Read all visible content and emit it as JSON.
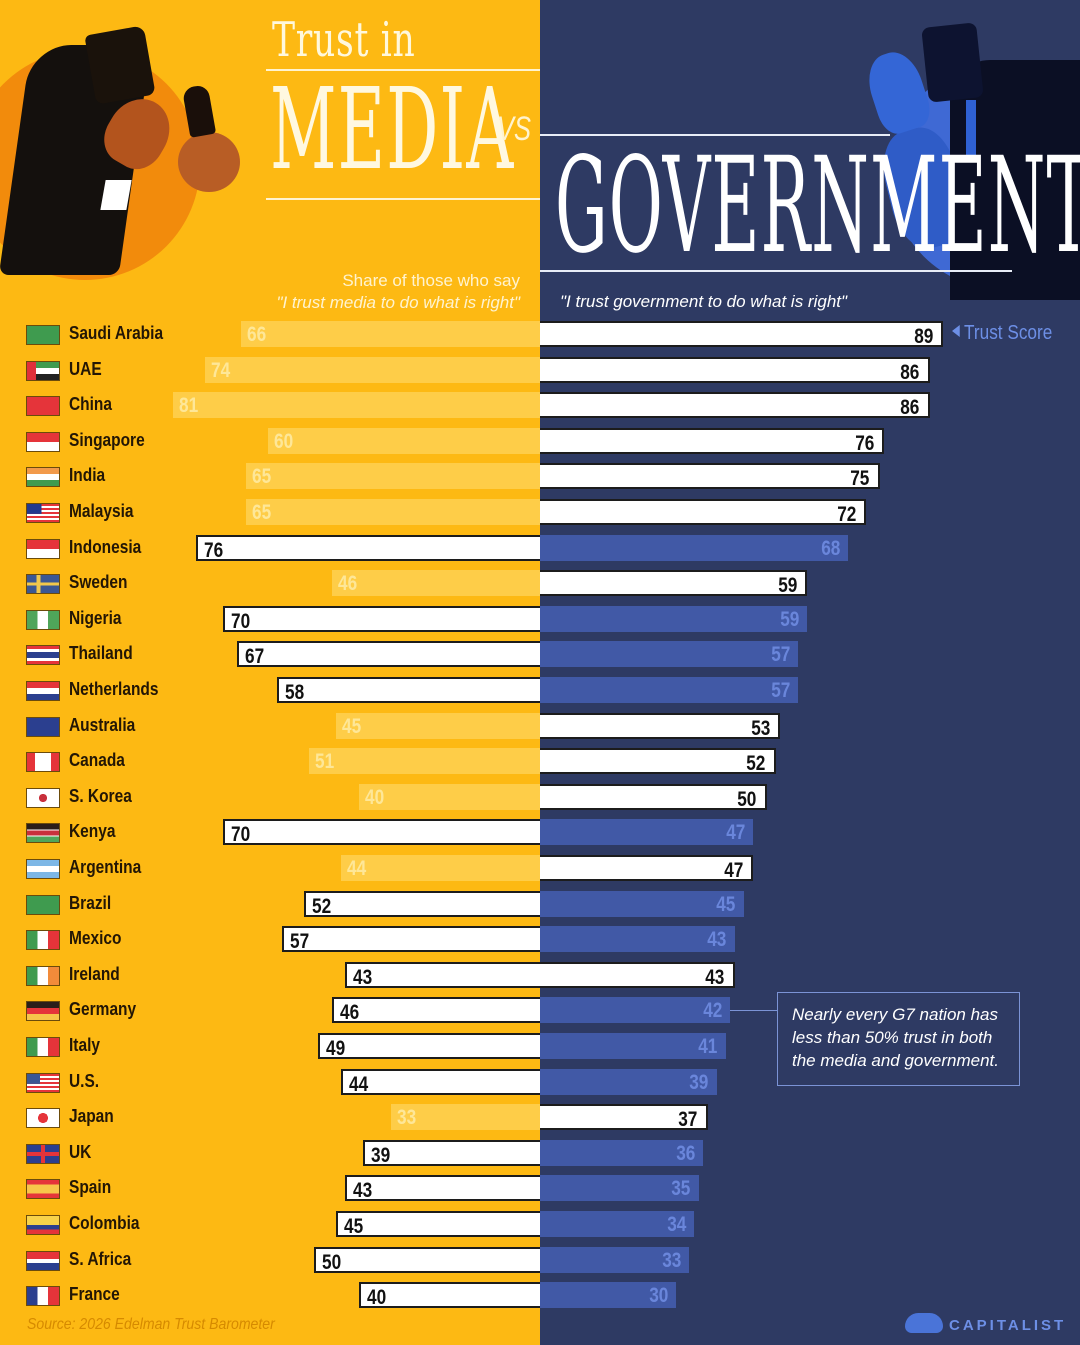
{
  "header": {
    "title_top": "Trust in",
    "title_left": "MEDIA",
    "title_vs": "VS",
    "title_right": "GOVERNMENT",
    "subtitle_left_line1": "Share of those who say",
    "subtitle_left_line2": "\"I trust media to do what is right\"",
    "subtitle_right": "\"I trust government to do what is right\""
  },
  "legend": {
    "trust_score_label": "Trust Score"
  },
  "annotation": "Nearly every G7 nation has less than 50% trust in both the media and government.",
  "footer": {
    "source": "Source: 2026 Edelman Trust Barometer",
    "logo": "CAPITALIST"
  },
  "colors": {
    "media_bg": "#fdb913",
    "government_bg": "#2e3a63",
    "media_faded_bar": "#fecd48",
    "government_faded_bar": "#4159a6",
    "highlight_bar": "#ffffff",
    "trust_score_accent": "#6d8fe6"
  },
  "rows": [
    {
      "country": "Saudi Arabia",
      "media": "66",
      "gov": "89",
      "winner": "gov"
    },
    {
      "country": "UAE",
      "media": "74",
      "gov": "86",
      "winner": "gov"
    },
    {
      "country": "China",
      "media": "81",
      "gov": "86",
      "winner": "gov"
    },
    {
      "country": "Singapore",
      "media": "60",
      "gov": "76",
      "winner": "gov"
    },
    {
      "country": "India",
      "media": "65",
      "gov": "75",
      "winner": "gov"
    },
    {
      "country": "Malaysia",
      "media": "65",
      "gov": "72",
      "winner": "gov"
    },
    {
      "country": "Indonesia",
      "media": "76",
      "gov": "68",
      "winner": "media"
    },
    {
      "country": "Sweden",
      "media": "46",
      "gov": "59",
      "winner": "gov"
    },
    {
      "country": "Nigeria",
      "media": "70",
      "gov": "59",
      "winner": "media"
    },
    {
      "country": "Thailand",
      "media": "67",
      "gov": "57",
      "winner": "media"
    },
    {
      "country": "Netherlands",
      "media": "58",
      "gov": "57",
      "winner": "media"
    },
    {
      "country": "Australia",
      "media": "45",
      "gov": "53",
      "winner": "gov"
    },
    {
      "country": "Canada",
      "media": "51",
      "gov": "52",
      "winner": "gov"
    },
    {
      "country": "S. Korea",
      "media": "40",
      "gov": "50",
      "winner": "gov"
    },
    {
      "country": "Kenya",
      "media": "70",
      "gov": "47",
      "winner": "media"
    },
    {
      "country": "Argentina",
      "media": "44",
      "gov": "47",
      "winner": "gov"
    },
    {
      "country": "Brazil",
      "media": "52",
      "gov": "45",
      "winner": "media"
    },
    {
      "country": "Mexico",
      "media": "57",
      "gov": "43",
      "winner": "media"
    },
    {
      "country": "Ireland",
      "media": "43",
      "gov": "43",
      "winner": "both"
    },
    {
      "country": "Germany",
      "media": "46",
      "gov": "42",
      "winner": "media"
    },
    {
      "country": "Italy",
      "media": "49",
      "gov": "41",
      "winner": "media"
    },
    {
      "country": "U.S.",
      "media": "44",
      "gov": "39",
      "winner": "media"
    },
    {
      "country": "Japan",
      "media": "33",
      "gov": "37",
      "winner": "gov"
    },
    {
      "country": "UK",
      "media": "39",
      "gov": "36",
      "winner": "media"
    },
    {
      "country": "Spain",
      "media": "43",
      "gov": "35",
      "winner": "media"
    },
    {
      "country": "Colombia",
      "media": "45",
      "gov": "34",
      "winner": "media"
    },
    {
      "country": "S. Africa",
      "media": "50",
      "gov": "33",
      "winner": "media"
    },
    {
      "country": "France",
      "media": "40",
      "gov": "30",
      "winner": "media"
    }
  ],
  "chart_data": {
    "type": "bar",
    "title": "Trust in Media vs Government",
    "subtitle": "Share of those who say \"I trust media/government to do what is right\"",
    "orientation": "horizontal-diverging",
    "categories": [
      "Saudi Arabia",
      "UAE",
      "China",
      "Singapore",
      "India",
      "Malaysia",
      "Indonesia",
      "Sweden",
      "Nigeria",
      "Thailand",
      "Netherlands",
      "Australia",
      "Canada",
      "S. Korea",
      "Kenya",
      "Argentina",
      "Brazil",
      "Mexico",
      "Ireland",
      "Germany",
      "Italy",
      "U.S.",
      "Japan",
      "UK",
      "Spain",
      "Colombia",
      "S. Africa",
      "France"
    ],
    "series": [
      {
        "name": "Media",
        "values": [
          66,
          74,
          81,
          60,
          65,
          65,
          76,
          46,
          70,
          67,
          58,
          45,
          51,
          40,
          70,
          44,
          52,
          57,
          43,
          46,
          49,
          44,
          33,
          39,
          43,
          45,
          50,
          40
        ]
      },
      {
        "name": "Government",
        "values": [
          89,
          86,
          86,
          76,
          75,
          72,
          68,
          59,
          59,
          57,
          57,
          53,
          52,
          50,
          47,
          47,
          45,
          43,
          43,
          42,
          41,
          39,
          37,
          36,
          35,
          34,
          33,
          30
        ]
      }
    ],
    "xlabel": "Trust Score",
    "ylabel": "",
    "source": "Source: 2026 Edelman Trust Barometer",
    "annotations": [
      "Trust Score",
      "Nearly every G7 nation has less than 50% trust in both the media and government."
    ]
  }
}
